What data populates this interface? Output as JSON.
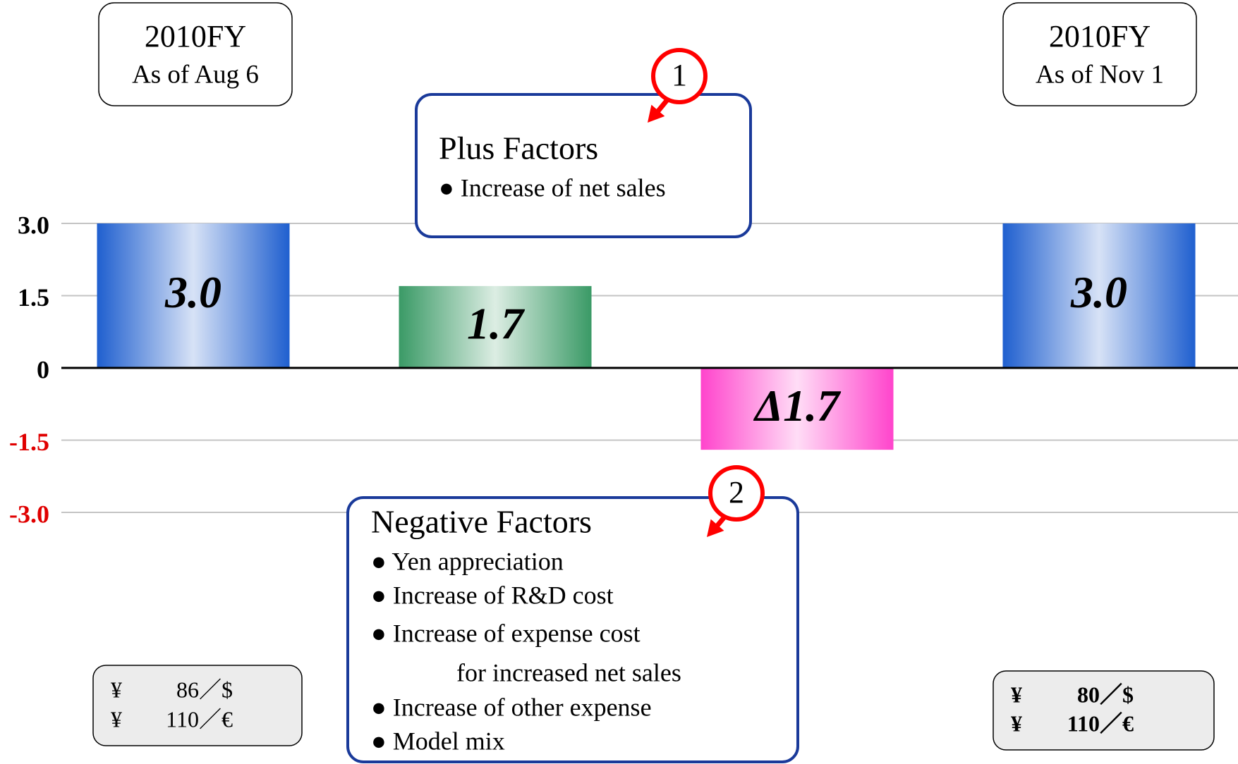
{
  "chart_data": {
    "type": "bar",
    "categories": [
      null,
      null,
      null,
      null
    ],
    "values": [
      3.0,
      1.7,
      -1.7,
      3.0
    ],
    "value_labels": [
      "3.0",
      "1.7",
      "Δ1.7",
      "3.0"
    ],
    "colors": [
      "#1f5fcf",
      "#3a9a66",
      "#ff44cc",
      "#1f5fcf"
    ],
    "ylim": [
      -3,
      3
    ],
    "yticks": [
      {
        "value": 3,
        "label": "3.0"
      },
      1.5,
      0,
      -1.5,
      {
        "value": -3,
        "label": "-3.0"
      }
    ],
    "grid": true,
    "negative_tick_color": "#e00000"
  },
  "headers": [
    {
      "title": "2010FY",
      "subtitle": "As of Aug 6"
    },
    {
      "title": "2010FY",
      "subtitle": "As of Nov 1"
    }
  ],
  "plus_factors": {
    "marker": "1",
    "title": "Plus Factors",
    "items": [
      "● Increase of net sales"
    ]
  },
  "negative_factors": {
    "marker": "2",
    "title": "Negative Factors",
    "items": [
      "● Yen appreciation",
      "● Increase of R&D cost",
      "● Increase of expense cost",
      "for increased net sales",
      "● Increase of other expense",
      "● Model mix"
    ]
  },
  "exchange_rates": [
    {
      "rows": [
        [
          "¥",
          "86／$"
        ],
        [
          "¥",
          "110／€"
        ]
      ]
    },
    {
      "rows": [
        [
          "¥",
          "80／$"
        ],
        [
          "¥",
          "110／€"
        ]
      ]
    }
  ]
}
